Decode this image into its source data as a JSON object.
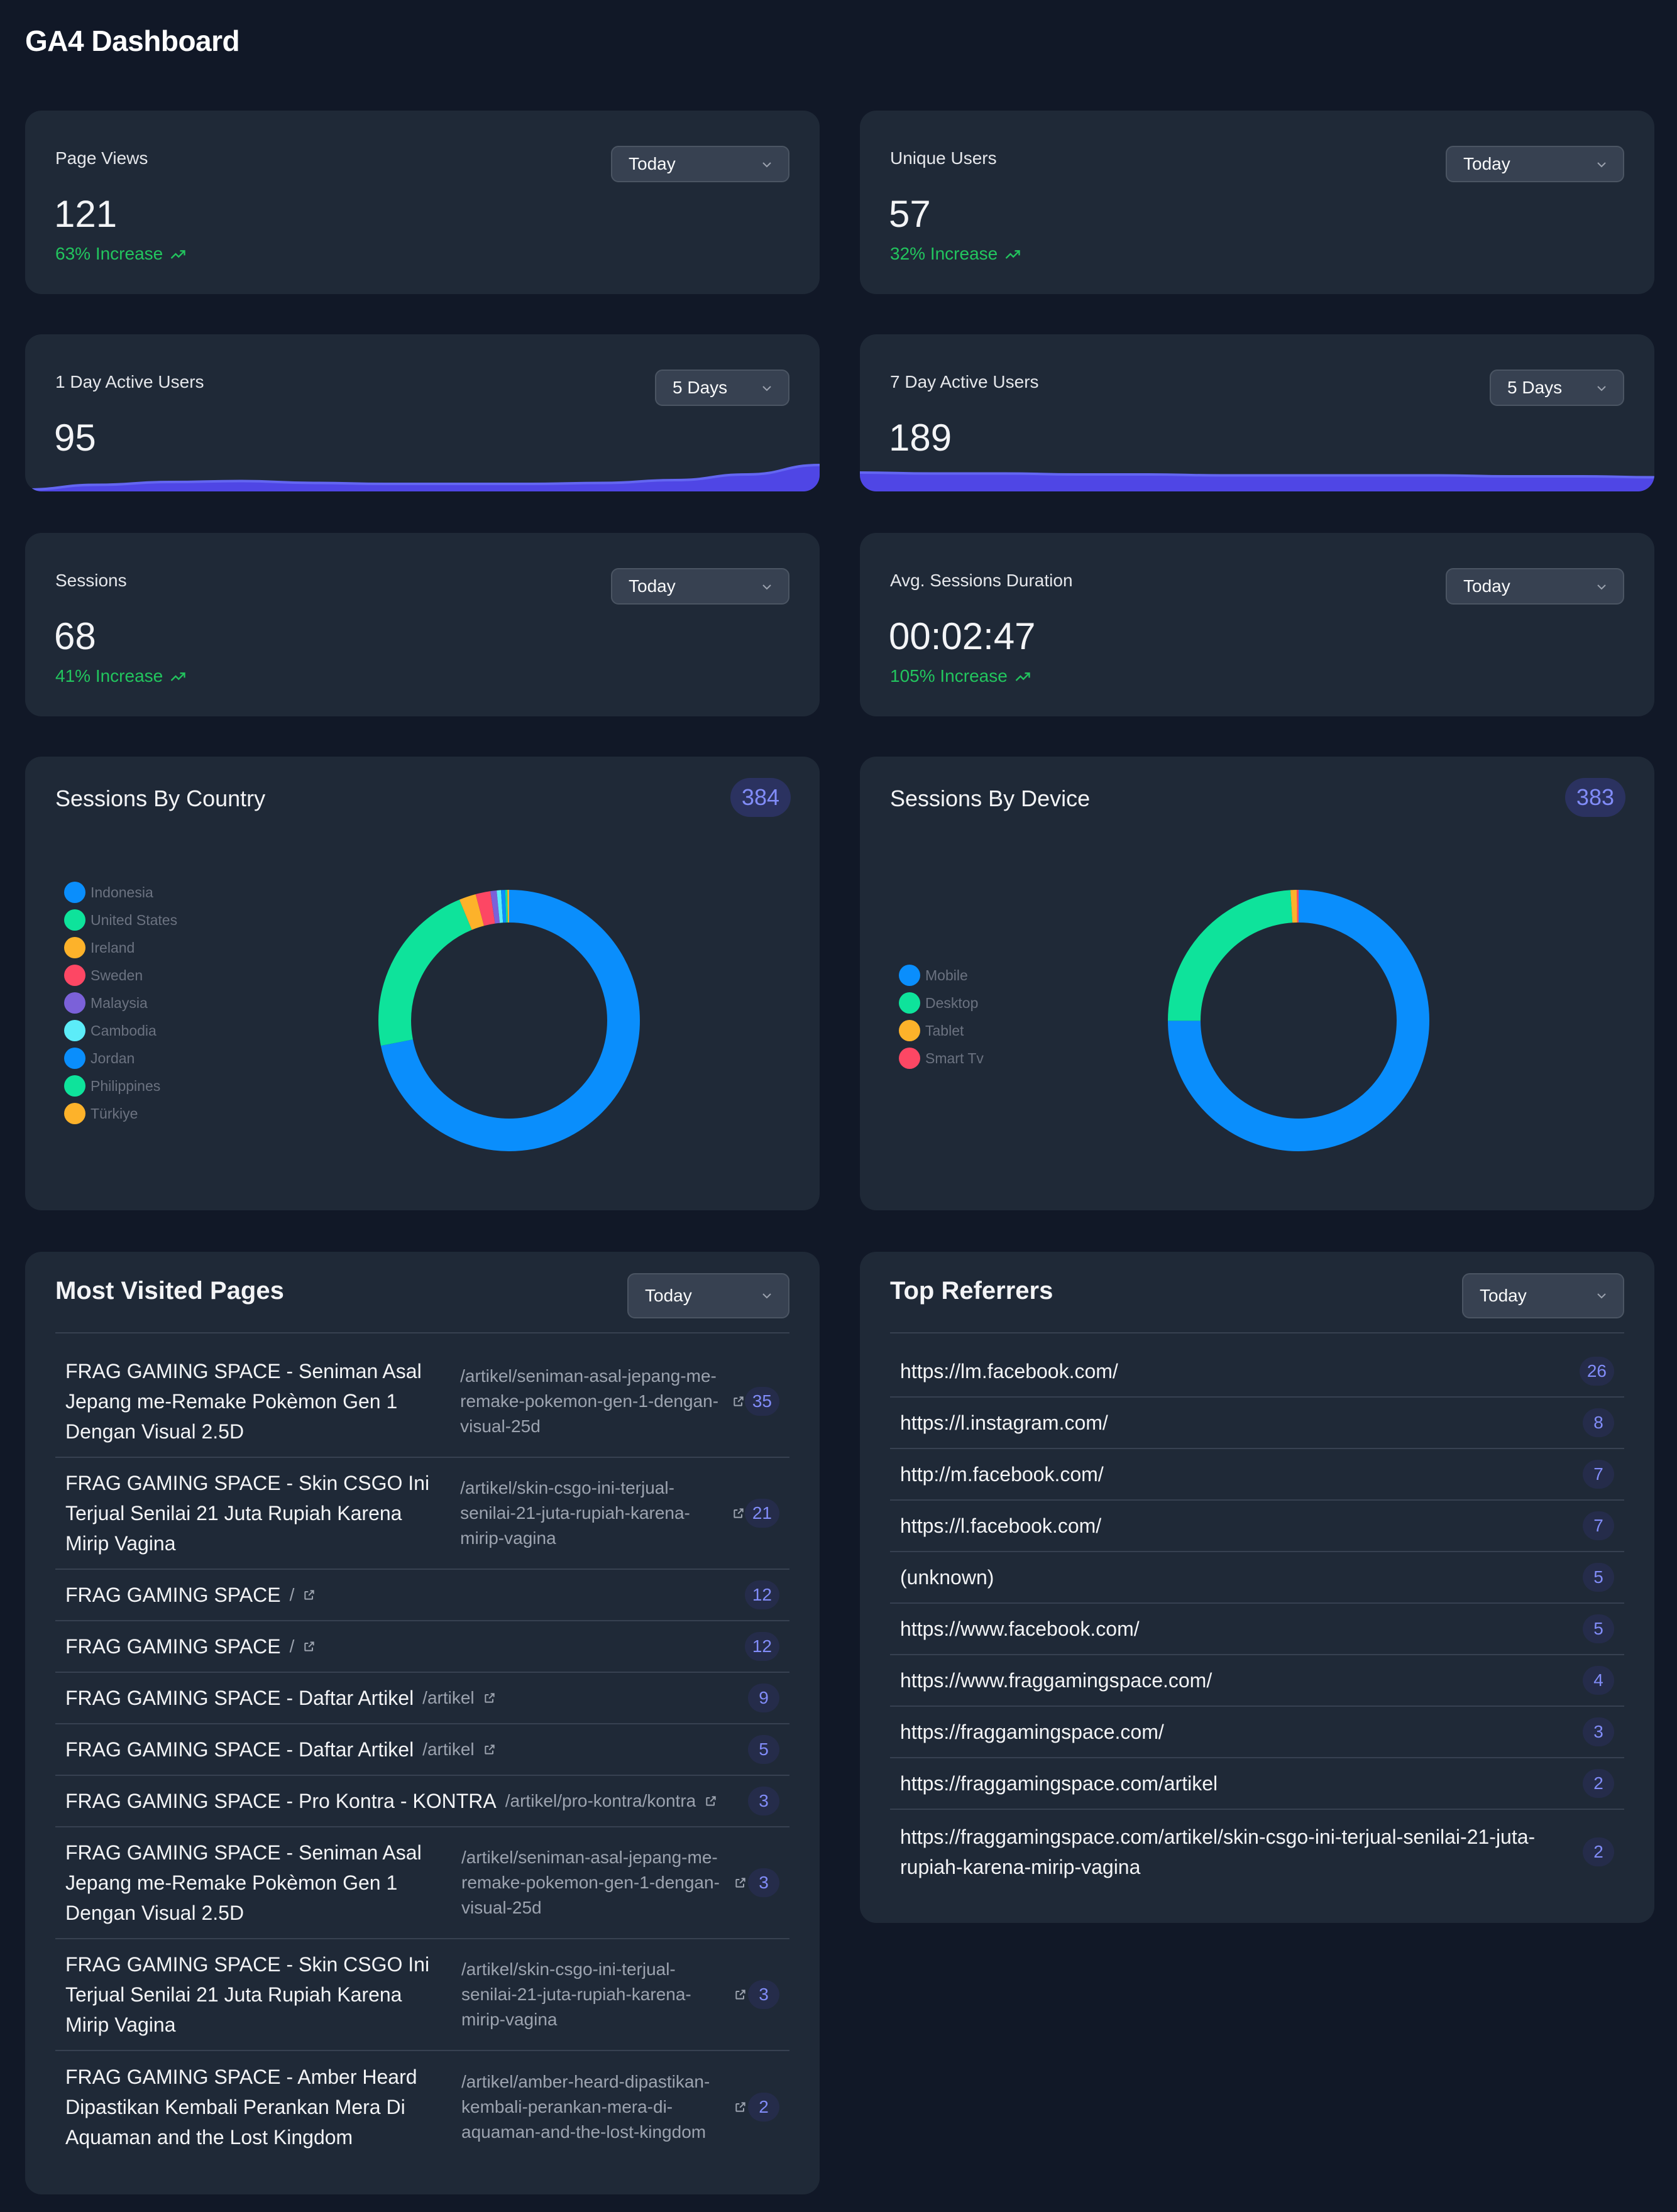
{
  "page_title": "GA4 Dashboard",
  "stats": {
    "page_views": {
      "label": "Page Views",
      "value": "121",
      "increase": "63% Increase",
      "select": "Today"
    },
    "unique_users": {
      "label": "Unique Users",
      "value": "57",
      "increase": "32% Increase",
      "select": "Today"
    },
    "day1_active": {
      "label": "1 Day Active Users",
      "value": "95",
      "select": "5 Days"
    },
    "day7_active": {
      "label": "7 Day Active Users",
      "value": "189",
      "select": "5 Days"
    },
    "sessions": {
      "label": "Sessions",
      "value": "68",
      "increase": "41% Increase",
      "select": "Today"
    },
    "avg_duration": {
      "label": "Avg. Sessions Duration",
      "value": "00:02:47",
      "increase": "105% Increase",
      "select": "Today"
    }
  },
  "chart_data": [
    {
      "type": "pie",
      "title": "Sessions By Country",
      "total": "384",
      "categories": [
        "Indonesia",
        "United States",
        "Ireland",
        "Sweden",
        "Malaysia",
        "Cambodia",
        "Jordan",
        "Philippines",
        "Türkiye"
      ],
      "values": [
        276,
        84,
        8,
        7,
        3,
        2,
        2,
        1,
        1
      ],
      "colors": [
        "#0a8efc",
        "#0ee39b",
        "#fdb22a",
        "#fd4764",
        "#7b61d9",
        "#5cecf8",
        "#0a8efc",
        "#0ee39b",
        "#fdb22a"
      ]
    },
    {
      "type": "pie",
      "title": "Sessions By Device",
      "total": "383",
      "categories": [
        "Mobile",
        "Desktop",
        "Tablet",
        "Smart Tv"
      ],
      "values": [
        287,
        92,
        3,
        1
      ],
      "colors": [
        "#0a8efc",
        "#0ee39b",
        "#fdb22a",
        "#fd4764"
      ]
    }
  ],
  "sparklines": {
    "day1": [
      2,
      7,
      10,
      11,
      9,
      8,
      8,
      8,
      9,
      12,
      18,
      28
    ],
    "day7": [
      20,
      19,
      19,
      18,
      18,
      17,
      17,
      17,
      17,
      16,
      16,
      15
    ]
  },
  "most_visited": {
    "title": "Most Visited Pages",
    "select": "Today",
    "rows": [
      {
        "title": "FRAG GAMING SPACE - Seniman Asal Jepang me-Remake Pokèmon Gen 1 Dengan Visual 2.5D",
        "path": "/artikel/seniman-asal-jepang-me-remake-pokemon-gen-1-dengan-visual-25d",
        "count": "35"
      },
      {
        "title": "FRAG GAMING SPACE - Skin CSGO Ini Terjual Senilai 21 Juta Rupiah Karena Mirip Vagina",
        "path": "/artikel/skin-csgo-ini-terjual-senilai-21-juta-rupiah-karena-mirip-vagina",
        "count": "21"
      },
      {
        "title": "FRAG GAMING SPACE",
        "path": "/",
        "count": "12"
      },
      {
        "title": "FRAG GAMING SPACE",
        "path": "/",
        "count": "12"
      },
      {
        "title": "FRAG GAMING SPACE - Daftar Artikel",
        "path": "/artikel",
        "count": "9"
      },
      {
        "title": "FRAG GAMING SPACE - Daftar Artikel",
        "path": "/artikel",
        "count": "5"
      },
      {
        "title": "FRAG GAMING SPACE - Pro Kontra - KONTRA",
        "path": "/artikel/pro-kontra/kontra",
        "count": "3"
      },
      {
        "title": "FRAG GAMING SPACE - Seniman Asal Jepang me-Remake Pokèmon Gen 1 Dengan Visual 2.5D",
        "path": "/artikel/seniman-asal-jepang-me-remake-pokemon-gen-1-dengan-visual-25d",
        "count": "3"
      },
      {
        "title": "FRAG GAMING SPACE - Skin CSGO Ini Terjual Senilai 21 Juta Rupiah Karena Mirip Vagina",
        "path": "/artikel/skin-csgo-ini-terjual-senilai-21-juta-rupiah-karena-mirip-vagina",
        "count": "3"
      },
      {
        "title": "FRAG GAMING SPACE - Amber Heard Dipastikan Kembali Perankan Mera Di Aquaman and the Lost Kingdom",
        "path": "/artikel/amber-heard-dipastikan-kembali-perankan-mera-di-aquaman-and-the-lost-kingdom",
        "count": "2"
      }
    ]
  },
  "top_referrers": {
    "title": "Top Referrers",
    "select": "Today",
    "rows": [
      {
        "url": "https://lm.facebook.com/",
        "count": "26"
      },
      {
        "url": "https://l.instagram.com/",
        "count": "8"
      },
      {
        "url": "http://m.facebook.com/",
        "count": "7"
      },
      {
        "url": "https://l.facebook.com/",
        "count": "7"
      },
      {
        "url": "(unknown)",
        "count": "5"
      },
      {
        "url": "https://www.facebook.com/",
        "count": "5"
      },
      {
        "url": "https://www.fraggamingspace.com/",
        "count": "4"
      },
      {
        "url": "https://fraggamingspace.com/",
        "count": "3"
      },
      {
        "url": "https://fraggamingspace.com/artikel",
        "count": "2"
      },
      {
        "url": "https://fraggamingspace.com/artikel/skin-csgo-ini-terjual-senilai-21-juta-rupiah-karena-mirip-vagina",
        "count": "2"
      }
    ]
  }
}
